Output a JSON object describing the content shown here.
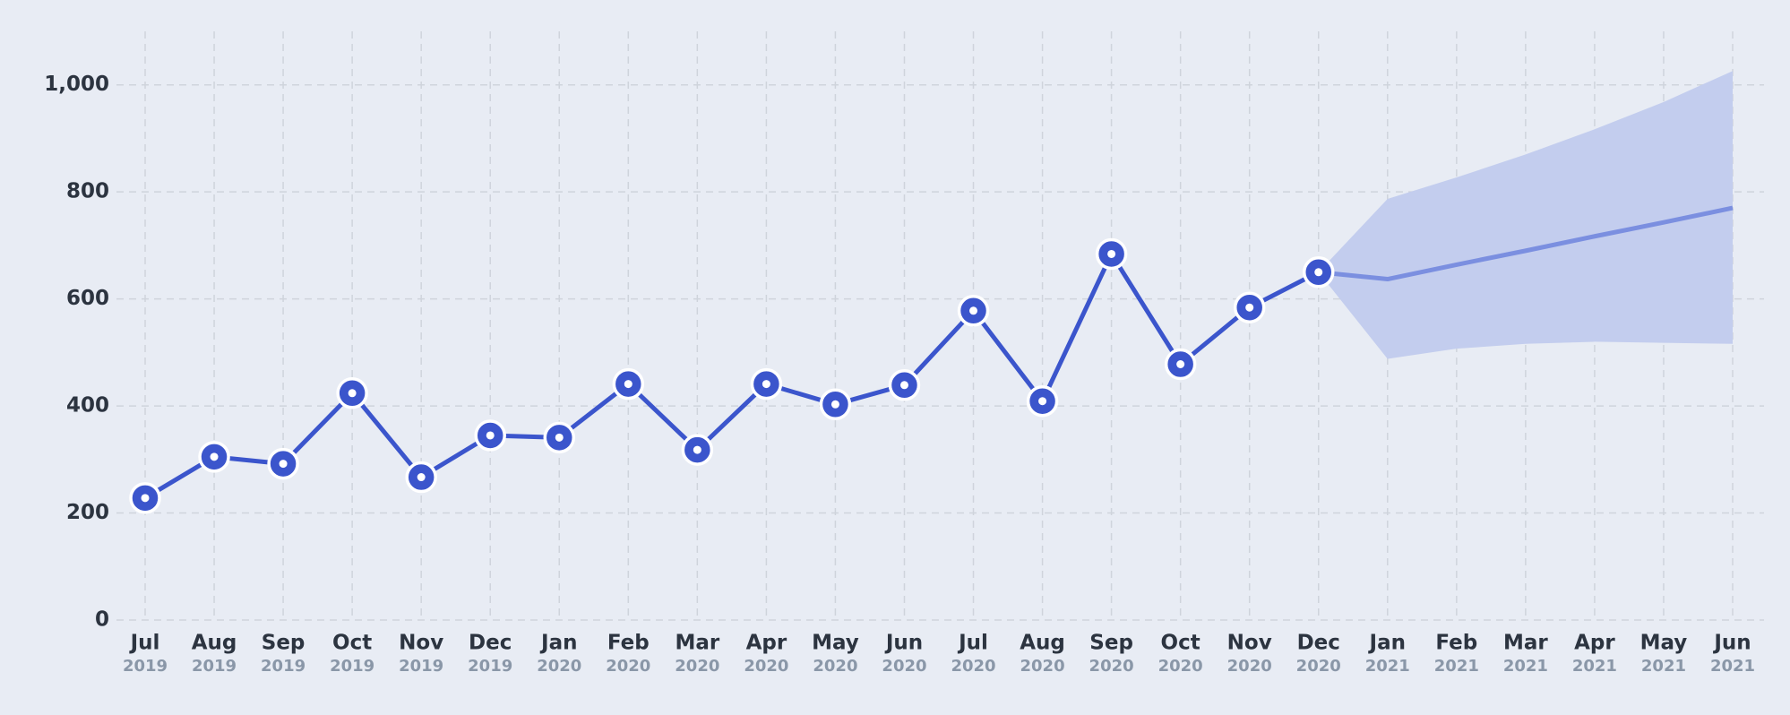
{
  "chart_data": {
    "type": "line",
    "categories": [
      [
        "Jul",
        "2019"
      ],
      [
        "Aug",
        "2019"
      ],
      [
        "Sep",
        "2019"
      ],
      [
        "Oct",
        "2019"
      ],
      [
        "Nov",
        "2019"
      ],
      [
        "Dec",
        "2019"
      ],
      [
        "Jan",
        "2020"
      ],
      [
        "Feb",
        "2020"
      ],
      [
        "Mar",
        "2020"
      ],
      [
        "Apr",
        "2020"
      ],
      [
        "May",
        "2020"
      ],
      [
        "Jun",
        "2020"
      ],
      [
        "Jul",
        "2020"
      ],
      [
        "Aug",
        "2020"
      ],
      [
        "Sep",
        "2020"
      ],
      [
        "Oct",
        "2020"
      ],
      [
        "Nov",
        "2020"
      ],
      [
        "Dec",
        "2020"
      ],
      [
        "Jan",
        "2021"
      ],
      [
        "Feb",
        "2021"
      ],
      [
        "Mar",
        "2021"
      ],
      [
        "Apr",
        "2021"
      ],
      [
        "May",
        "2021"
      ],
      [
        "Jun",
        "2021"
      ]
    ],
    "series": [
      {
        "color": "#3b55cc",
        "markers": true,
        "values": [
          228,
          305,
          292,
          424,
          267,
          345,
          341,
          441,
          318,
          441,
          403,
          439,
          578,
          409,
          684,
          478,
          584,
          650,
          null,
          null,
          null,
          null,
          null,
          null
        ]
      },
      {
        "color": "#7b8fe0",
        "markers": false,
        "values": [
          null,
          null,
          null,
          null,
          null,
          null,
          null,
          null,
          null,
          null,
          null,
          null,
          null,
          null,
          null,
          null,
          null,
          650,
          637,
          664,
          690,
          717,
          743,
          770
        ]
      }
    ],
    "band": {
      "color": "#c3cdee",
      "upper": [
        null,
        null,
        null,
        null,
        null,
        null,
        null,
        null,
        null,
        null,
        null,
        null,
        null,
        null,
        null,
        null,
        null,
        650,
        787,
        827,
        870,
        917,
        968,
        1026
      ],
      "lower": [
        null,
        null,
        null,
        null,
        null,
        null,
        null,
        null,
        null,
        null,
        null,
        null,
        null,
        null,
        null,
        null,
        null,
        650,
        488,
        507,
        516,
        520,
        518,
        516
      ]
    },
    "ylim": [
      0,
      1100
    ],
    "yticks": [
      0,
      200,
      400,
      600,
      800,
      {
        "value": 1000,
        "label": "1,000"
      }
    ],
    "grid": true
  }
}
